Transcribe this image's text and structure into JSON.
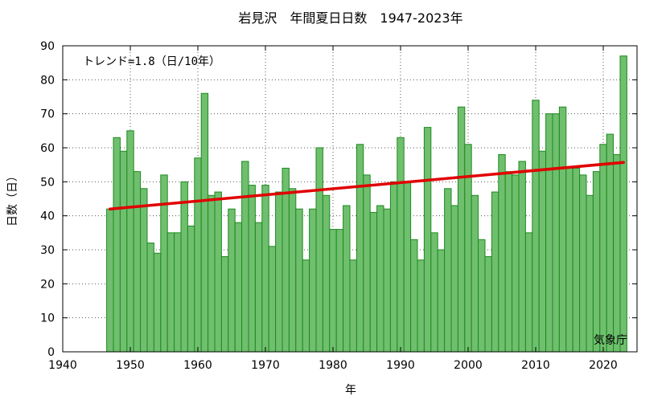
{
  "chart_data": {
    "type": "bar",
    "title": "岩見沢　年間夏日日数　1947-2023年",
    "xlabel": "年",
    "ylabel": "日数（日）",
    "xlim": [
      1940,
      2025
    ],
    "ylim": [
      0,
      90
    ],
    "xticks": [
      "1940",
      "1950",
      "1960",
      "1970",
      "1980",
      "1990",
      "2000",
      "2010",
      "2020"
    ],
    "yticks": [
      "0",
      "10",
      "20",
      "30",
      "40",
      "50",
      "60",
      "70",
      "80",
      "90"
    ],
    "grid": true,
    "trend_label": "トレンド=1.8（日/10年）",
    "trend": {
      "x": [
        1947,
        2023
      ],
      "y": [
        42.0,
        55.7
      ],
      "color": "#e00000"
    },
    "source_label": "気象庁",
    "bar_color": "#6fbf6f",
    "bar_edge_color": "#1e8a1e",
    "x": [
      1947,
      1948,
      1949,
      1950,
      1951,
      1952,
      1953,
      1954,
      1955,
      1956,
      1957,
      1958,
      1959,
      1960,
      1961,
      1962,
      1963,
      1964,
      1965,
      1966,
      1967,
      1968,
      1969,
      1970,
      1971,
      1972,
      1973,
      1974,
      1975,
      1976,
      1977,
      1978,
      1979,
      1980,
      1981,
      1982,
      1983,
      1984,
      1985,
      1986,
      1987,
      1988,
      1989,
      1990,
      1991,
      1992,
      1993,
      1994,
      1995,
      1996,
      1997,
      1998,
      1999,
      2000,
      2001,
      2002,
      2003,
      2004,
      2005,
      2006,
      2007,
      2008,
      2009,
      2010,
      2011,
      2012,
      2013,
      2014,
      2015,
      2016,
      2017,
      2018,
      2019,
      2020,
      2021,
      2022,
      2023
    ],
    "values": [
      42,
      63,
      59,
      65,
      53,
      48,
      32,
      29,
      52,
      35,
      35,
      50,
      37,
      57,
      76,
      46,
      47,
      28,
      42,
      38,
      56,
      49,
      38,
      49,
      31,
      47,
      54,
      48,
      42,
      27,
      42,
      60,
      46,
      36,
      36,
      43,
      27,
      61,
      52,
      41,
      43,
      42,
      50,
      63,
      50,
      33,
      27,
      66,
      35,
      30,
      48,
      43,
      72,
      61,
      46,
      33,
      28,
      47,
      58,
      53,
      52,
      56,
      35,
      74,
      59,
      70,
      70,
      72,
      54,
      54,
      52,
      46,
      53,
      61,
      64,
      58,
      87
    ]
  }
}
